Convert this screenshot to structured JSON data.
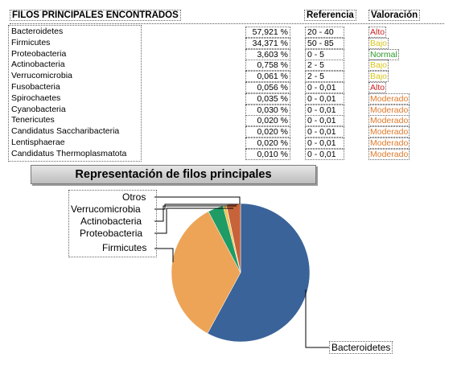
{
  "table": {
    "col_name": "FILOS PRINCIPALES ENCONTRADOS",
    "col_ref": "Referencia",
    "col_val": "Valoración",
    "rows": [
      {
        "name": "Bacteroidetes",
        "pct": "57,921 %",
        "ref": "20 - 40",
        "val": "Alto",
        "color": "#cc2222"
      },
      {
        "name": "Firmicutes",
        "pct": "34,371 %",
        "ref": "50 - 85",
        "val": "Bajo",
        "color": "#d8c51a"
      },
      {
        "name": "Proteobacteria",
        "pct": "3,603 %",
        "ref": "0 - 5",
        "val": "Normal",
        "color": "#2a9a2a"
      },
      {
        "name": "Actinobacteria",
        "pct": "0,758 %",
        "ref": "2 - 5",
        "val": "Bajo",
        "color": "#d8c51a"
      },
      {
        "name": "Verrucomicrobia",
        "pct": "0,061 %",
        "ref": "2 - 5",
        "val": "Bajo",
        "color": "#d8c51a"
      },
      {
        "name": "Fusobacteria",
        "pct": "0,056 %",
        "ref": "0 - 0,01",
        "val": "Alto",
        "color": "#cc2222"
      },
      {
        "name": "Spirochaetes",
        "pct": "0,035 %",
        "ref": "0 - 0,01",
        "val": "Moderado",
        "color": "#e07a2a"
      },
      {
        "name": "Cyanobacteria",
        "pct": "0,030 %",
        "ref": "0 - 0,01",
        "val": "Moderado",
        "color": "#e07a2a"
      },
      {
        "name": "Tenericutes",
        "pct": "0,020 %",
        "ref": "0 - 0,01",
        "val": "Moderado",
        "color": "#e07a2a"
      },
      {
        "name": "Candidatus Saccharibacteria",
        "pct": "0,020 %",
        "ref": "0 - 0,01",
        "val": "Moderado",
        "color": "#e07a2a"
      },
      {
        "name": "Lentisphaerae",
        "pct": "0,020 %",
        "ref": "0 - 0,01",
        "val": "Moderado",
        "color": "#e07a2a"
      },
      {
        "name": "Candidatus Thermoplasmatota",
        "pct": "0,010 %",
        "ref": "0 - 0,01",
        "val": "Moderado",
        "color": "#e07a2a"
      }
    ]
  },
  "chart_data": {
    "type": "pie",
    "title": "Representación de filos principales",
    "slices": [
      {
        "name": "Bacteroidetes",
        "value": 57.921,
        "color": "#3a6399"
      },
      {
        "name": "Firmicutes",
        "value": 34.371,
        "color": "#eda457"
      },
      {
        "name": "Proteobacteria",
        "value": 3.603,
        "color": "#1f9b66"
      },
      {
        "name": "Actinobacteria",
        "value": 0.758,
        "color": "#f2c34a"
      },
      {
        "name": "Verrucomicrobia",
        "value": 0.061,
        "color": "#5b8fd0"
      },
      {
        "name": "Otros",
        "value": 3.286,
        "color": "#c7633a"
      }
    ]
  }
}
